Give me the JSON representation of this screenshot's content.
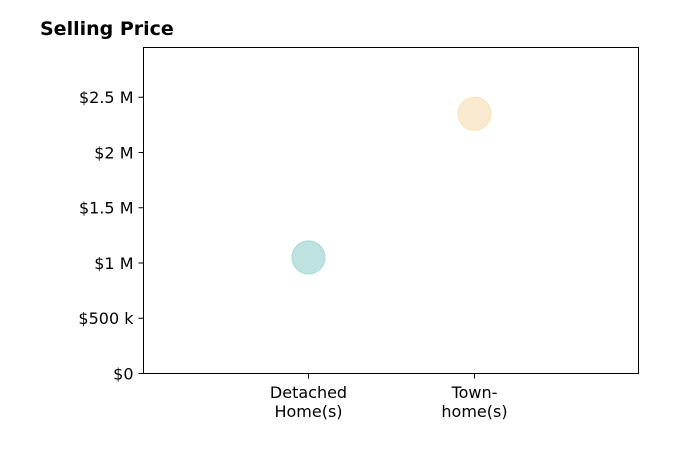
{
  "chart_data": {
    "type": "scatter",
    "title": "Selling Price",
    "xlabel": "",
    "ylabel": "",
    "categories": [
      [
        "Detached",
        "Home(s)"
      ],
      [
        "Town-",
        "home(s)"
      ]
    ],
    "points": [
      {
        "category_index": 0,
        "value": 1050000,
        "color": "#a8d8d6"
      },
      {
        "category_index": 1,
        "value": 2350000,
        "color": "#f6e2bf"
      }
    ],
    "ylim": [
      0,
      2950000
    ],
    "yticks": [
      {
        "value": 0,
        "label": "$0"
      },
      {
        "value": 500000,
        "label": "$500 k"
      },
      {
        "value": 1000000,
        "label": "$1 M"
      },
      {
        "value": 1500000,
        "label": "$1.5 M"
      },
      {
        "value": 2000000,
        "label": "$2 M"
      },
      {
        "value": 2500000,
        "label": "$2.5 M"
      }
    ],
    "grid": false,
    "legend": "none"
  }
}
